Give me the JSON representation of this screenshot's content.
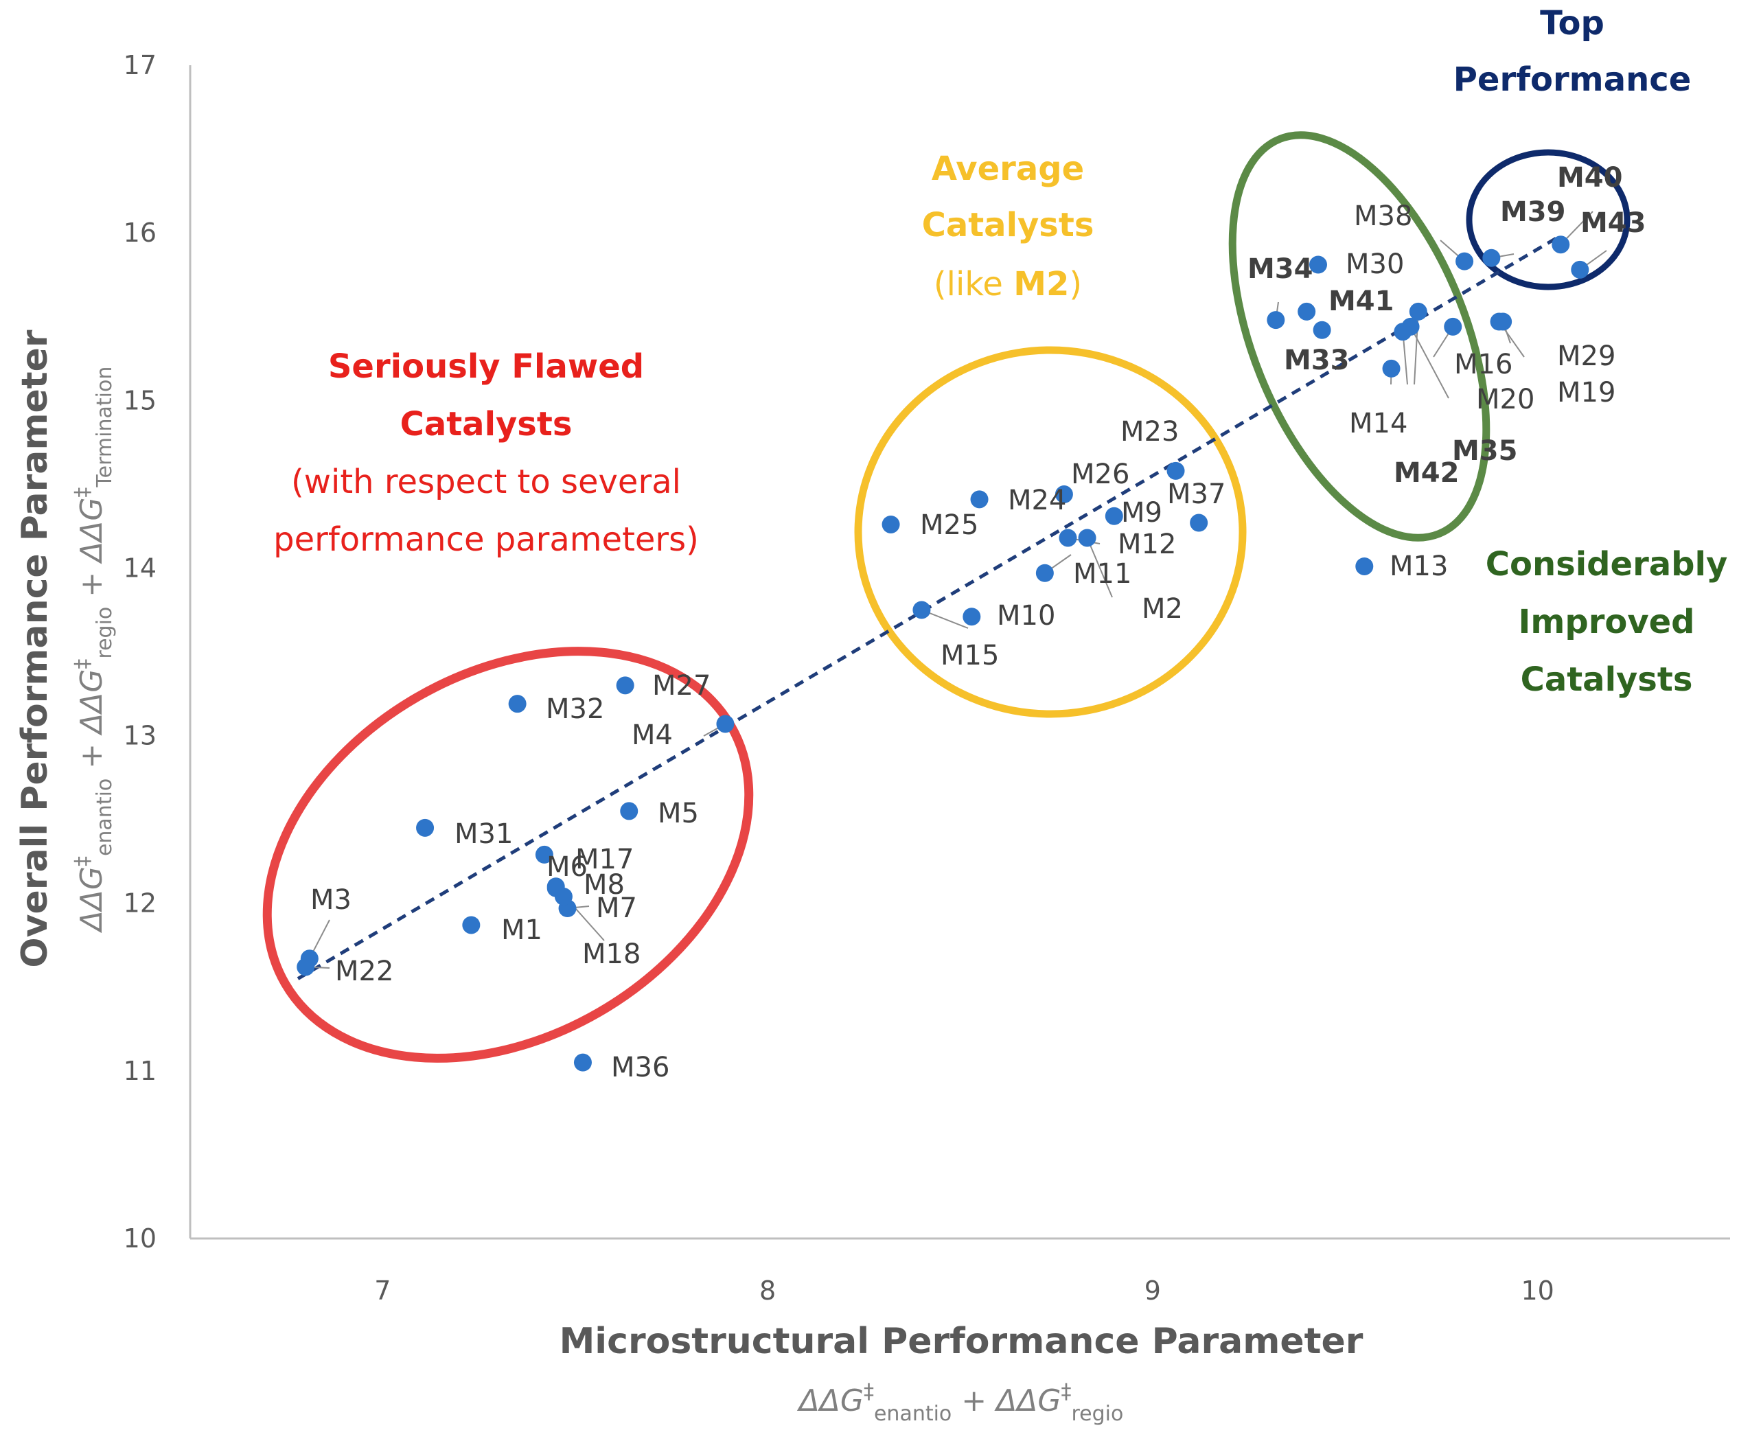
{
  "chart_data": {
    "type": "scatter",
    "xlabel": "Microstructural Performance Parameter",
    "xlabel_formula": {
      "parts": [
        {
          "t": "ΔΔG",
          "s": "n"
        },
        {
          "t": "‡",
          "s": "sup"
        },
        {
          "t": "enantio",
          "s": "sub"
        },
        {
          "t": "  +  ",
          "s": "n"
        },
        {
          "t": "ΔΔG",
          "s": "n"
        },
        {
          "t": "‡",
          "s": "sup"
        },
        {
          "t": "regio",
          "s": "sub"
        }
      ]
    },
    "ylabel": "Overall Performance Parameter",
    "ylabel_formula": {
      "parts": [
        {
          "t": "ΔΔG",
          "s": "n"
        },
        {
          "t": "‡",
          "s": "sup"
        },
        {
          "t": "enantio",
          "s": "sub"
        },
        {
          "t": "  +  ",
          "s": "n"
        },
        {
          "t": "ΔΔG",
          "s": "n"
        },
        {
          "t": "‡",
          "s": "sup"
        },
        {
          "t": "regio",
          "s": "sub"
        },
        {
          "t": "  +  ",
          "s": "n"
        },
        {
          "t": "ΔΔG",
          "s": "n"
        },
        {
          "t": "‡",
          "s": "sup"
        },
        {
          "t": "Termination",
          "s": "sub"
        }
      ]
    },
    "xlim": [
      6.5,
      10.5
    ],
    "ylim": [
      10,
      17
    ],
    "xticks": [
      "7",
      "8",
      "9",
      "10"
    ],
    "yticks": [
      "10",
      "11",
      "12",
      "13",
      "14",
      "15",
      "16",
      "17"
    ],
    "grid": false,
    "point_color": "#2e75c9",
    "trendline": {
      "style": "dashed",
      "color": "#1f3d7a",
      "from": [
        6.78,
        11.55
      ],
      "to": [
        10.05,
        15.97
      ]
    },
    "points": [
      {
        "label": "M1",
        "x": 7.23,
        "y": 11.87
      },
      {
        "label": "M2",
        "x": 8.83,
        "y": 14.18
      },
      {
        "label": "M3",
        "x": 6.81,
        "y": 11.67
      },
      {
        "label": "M4",
        "x": 7.89,
        "y": 13.07
      },
      {
        "label": "M5",
        "x": 7.64,
        "y": 12.55
      },
      {
        "label": "M6",
        "x": 7.45,
        "y": 12.09
      },
      {
        "label": "M7",
        "x": 7.48,
        "y": 11.97
      },
      {
        "label": "M8",
        "x": 7.47,
        "y": 12.04
      },
      {
        "label": "M9",
        "x": 8.9,
        "y": 14.31
      },
      {
        "label": "M10",
        "x": 8.53,
        "y": 13.71
      },
      {
        "label": "M11",
        "x": 8.72,
        "y": 13.97
      },
      {
        "label": "M12",
        "x": 8.78,
        "y": 14.18
      },
      {
        "label": "M13",
        "x": 9.55,
        "y": 14.01
      },
      {
        "label": "M14",
        "x": 9.62,
        "y": 15.19
      },
      {
        "label": "M15",
        "x": 8.4,
        "y": 13.75
      },
      {
        "label": "M16",
        "x": 9.78,
        "y": 15.44
      },
      {
        "label": "M17",
        "x": 7.42,
        "y": 12.29
      },
      {
        "label": "M18",
        "x": 7.45,
        "y": 12.1
      },
      {
        "label": "M19",
        "x": 9.91,
        "y": 15.47
      },
      {
        "label": "M20",
        "x": 9.67,
        "y": 15.44
      },
      {
        "label": "M22",
        "x": 6.8,
        "y": 11.62
      },
      {
        "label": "M23",
        "x": 9.06,
        "y": 14.58
      },
      {
        "label": "M24",
        "x": 8.55,
        "y": 14.41
      },
      {
        "label": "M25",
        "x": 8.32,
        "y": 14.26
      },
      {
        "label": "M26",
        "x": 8.77,
        "y": 14.44
      },
      {
        "label": "M27",
        "x": 7.63,
        "y": 13.3
      },
      {
        "label": "M29",
        "x": 9.9,
        "y": 15.47
      },
      {
        "label": "M30",
        "x": 9.43,
        "y": 15.81
      },
      {
        "label": "M31",
        "x": 7.11,
        "y": 12.45
      },
      {
        "label": "M32",
        "x": 7.35,
        "y": 13.19
      },
      {
        "label": "M33",
        "x": 9.44,
        "y": 15.42
      },
      {
        "label": "M34",
        "x": 9.32,
        "y": 15.48
      },
      {
        "label": "M35",
        "x": 9.65,
        "y": 15.41
      },
      {
        "label": "M36",
        "x": 7.52,
        "y": 11.05
      },
      {
        "label": "M37",
        "x": 9.12,
        "y": 14.27
      },
      {
        "label": "M38",
        "x": 9.81,
        "y": 15.83
      },
      {
        "label": "M39",
        "x": 9.88,
        "y": 15.85
      },
      {
        "label": "M40",
        "x": 10.06,
        "y": 15.93
      },
      {
        "label": "M41",
        "x": 9.4,
        "y": 15.53
      },
      {
        "label": "M42",
        "x": 9.69,
        "y": 15.53
      },
      {
        "label": "M43",
        "x": 10.11,
        "y": 15.78
      }
    ],
    "annotations": [
      {
        "lines": [
          "Top",
          "Performance"
        ],
        "color": "#0e2a6b"
      },
      {
        "lines": [
          "Average",
          "Catalysts"
        ],
        "color": "#f6c02a"
      },
      {
        "lines": [
          "Seriously Flawed",
          "Catalysts",
          "(with respect to several",
          "performance parameters)"
        ],
        "color": "#e8211c"
      },
      {
        "lines": [
          "Considerably",
          "Improved",
          "Catalysts"
        ],
        "color": "#2f6420"
      }
    ],
    "like_m2": {
      "prefix": "(like ",
      "bold": "M2",
      "suffix": ")"
    },
    "regions": [
      {
        "name": "top-performance",
        "color": "#0e2a6b"
      },
      {
        "name": "average-catalysts",
        "color": "#f6c02a"
      },
      {
        "name": "seriously-flawed-catalysts",
        "color": "#e84545"
      },
      {
        "name": "considerably-improved-catalysts",
        "color": "#5b8a46"
      }
    ]
  }
}
